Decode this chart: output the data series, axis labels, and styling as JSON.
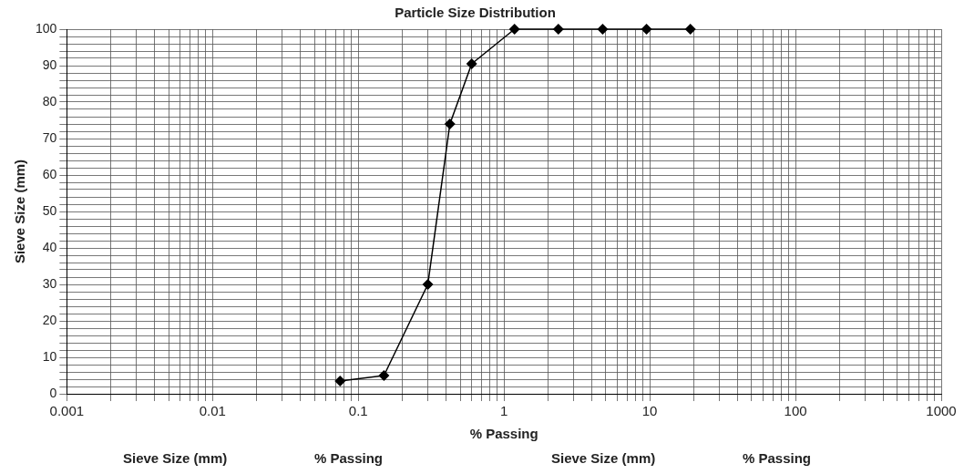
{
  "chart_data": {
    "type": "line",
    "title": "Particle Size Distribution",
    "xlabel": "% Passing",
    "ylabel": "Sieve Size (mm)",
    "x": [
      0.075,
      0.15,
      0.3,
      0.425,
      0.6,
      1.18,
      2.36,
      4.75,
      9.5,
      19
    ],
    "series": [
      {
        "color": "#000000",
        "values": [
          3.5,
          5,
          30,
          74,
          90.5,
          100,
          100,
          100,
          100,
          100
        ]
      }
    ],
    "log": "x",
    "xlim": [
      0.001,
      1000
    ],
    "xticks": [
      0.001,
      {
        "value": 0.002,
        "label": null
      },
      {
        "value": 0.003,
        "label": null
      },
      {
        "value": 0.004,
        "label": null
      },
      {
        "value": 0.005,
        "label": null
      },
      {
        "value": 0.006,
        "label": null
      },
      {
        "value": 0.007,
        "label": null
      },
      {
        "value": 0.008,
        "label": null
      },
      {
        "value": 0.009,
        "label": null
      },
      0.01,
      {
        "value": 0.02,
        "label": null
      },
      {
        "value": 0.03,
        "label": null
      },
      {
        "value": 0.04,
        "label": null
      },
      {
        "value": 0.05,
        "label": null
      },
      {
        "value": 0.06,
        "label": null
      },
      {
        "value": 0.07,
        "label": null
      },
      {
        "value": 0.08,
        "label": null
      },
      {
        "value": 0.09,
        "label": null
      },
      0.1,
      {
        "value": 0.2,
        "label": null
      },
      {
        "value": 0.3,
        "label": null
      },
      {
        "value": 0.4,
        "label": null
      },
      {
        "value": 0.5,
        "label": null
      },
      {
        "value": 0.6,
        "label": null
      },
      {
        "value": 0.7,
        "label": null
      },
      {
        "value": 0.8,
        "label": null
      },
      {
        "value": 0.9,
        "label": null
      },
      1,
      {
        "value": 2,
        "label": null
      },
      {
        "value": 3,
        "label": null
      },
      {
        "value": 4,
        "label": null
      },
      {
        "value": 5,
        "label": null
      },
      {
        "value": 6,
        "label": null
      },
      {
        "value": 7,
        "label": null
      },
      {
        "value": 8,
        "label": null
      },
      {
        "value": 9,
        "label": null
      },
      10,
      {
        "value": 20,
        "label": null
      },
      {
        "value": 30,
        "label": null
      },
      {
        "value": 40,
        "label": null
      },
      {
        "value": 50,
        "label": null
      },
      {
        "value": 60,
        "label": null
      },
      {
        "value": 70,
        "label": null
      },
      {
        "value": 80,
        "label": null
      },
      {
        "value": 90,
        "label": null
      },
      100,
      {
        "value": 200,
        "label": null
      },
      {
        "value": 300,
        "label": null
      },
      {
        "value": 400,
        "label": null
      },
      {
        "value": 500,
        "label": null
      },
      {
        "value": 600,
        "label": null
      },
      {
        "value": 700,
        "label": null
      },
      {
        "value": 800,
        "label": null
      },
      {
        "value": 900,
        "label": null
      },
      1000
    ],
    "ylim": [
      0,
      100
    ],
    "yticks": [
      0,
      {
        "value": 2,
        "label": null
      },
      {
        "value": 4,
        "label": null
      },
      {
        "value": 6,
        "label": null
      },
      {
        "value": 8,
        "label": null
      },
      10,
      {
        "value": 12,
        "label": null
      },
      {
        "value": 14,
        "label": null
      },
      {
        "value": 16,
        "label": null
      },
      {
        "value": 18,
        "label": null
      },
      20,
      {
        "value": 22,
        "label": null
      },
      {
        "value": 24,
        "label": null
      },
      {
        "value": 26,
        "label": null
      },
      {
        "value": 28,
        "label": null
      },
      30,
      {
        "value": 32,
        "label": null
      },
      {
        "value": 34,
        "label": null
      },
      {
        "value": 36,
        "label": null
      },
      {
        "value": 38,
        "label": null
      },
      40,
      {
        "value": 42,
        "label": null
      },
      {
        "value": 44,
        "label": null
      },
      {
        "value": 46,
        "label": null
      },
      {
        "value": 48,
        "label": null
      },
      50,
      {
        "value": 52,
        "label": null
      },
      {
        "value": 54,
        "label": null
      },
      {
        "value": 56,
        "label": null
      },
      {
        "value": 58,
        "label": null
      },
      60,
      {
        "value": 62,
        "label": null
      },
      {
        "value": 64,
        "label": null
      },
      {
        "value": 66,
        "label": null
      },
      {
        "value": 68,
        "label": null
      },
      70,
      {
        "value": 72,
        "label": null
      },
      {
        "value": 74,
        "label": null
      },
      {
        "value": 76,
        "label": null
      },
      {
        "value": 78,
        "label": null
      },
      80,
      {
        "value": 82,
        "label": null
      },
      {
        "value": 84,
        "label": null
      },
      {
        "value": 86,
        "label": null
      },
      {
        "value": 88,
        "label": null
      },
      90,
      {
        "value": 92,
        "label": null
      },
      {
        "value": 94,
        "label": null
      },
      {
        "value": 96,
        "label": null
      },
      {
        "value": 98,
        "label": null
      },
      100
    ],
    "grid": true,
    "legend": false,
    "marker": "diamond",
    "line_style": "solid",
    "annotations": [
      "Sieve Size (mm)",
      "% Passing",
      "Sieve Size (mm)",
      "% Passing"
    ]
  }
}
